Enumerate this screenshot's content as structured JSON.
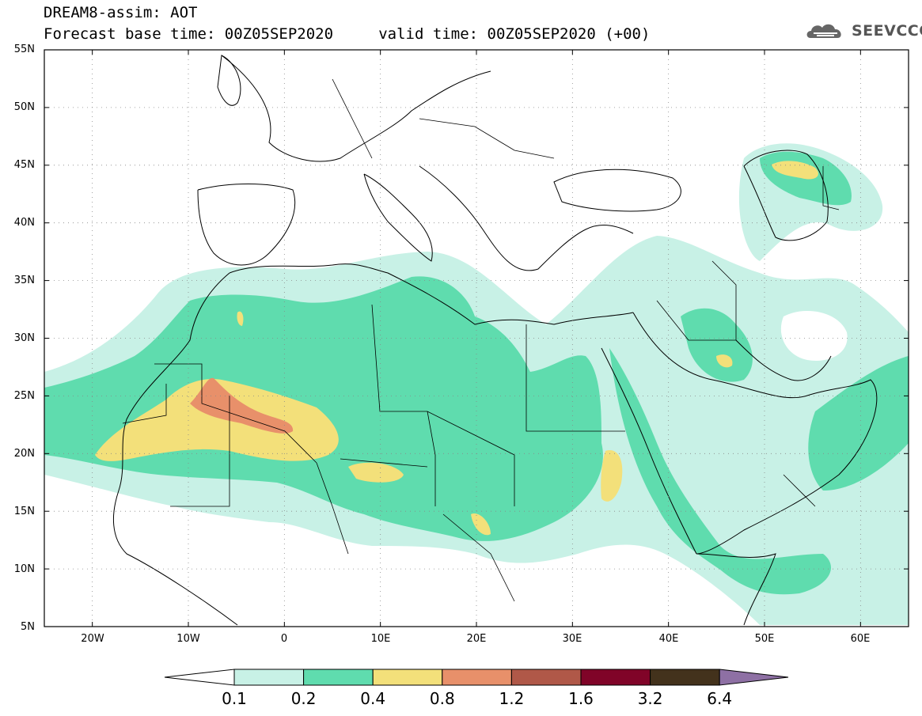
{
  "header": {
    "line1": "DREAM8-assim: AOT",
    "line2": "Forecast base time: 00Z05SEP2020     valid time: 00Z05SEP2020 (+00)"
  },
  "logo": {
    "text": "SEEVCCC",
    "icon": "cloud-icon"
  },
  "map": {
    "lat_range": [
      5,
      55
    ],
    "lon_range": [
      -25,
      65
    ],
    "lat_labels": [
      "55N",
      "50N",
      "45N",
      "40N",
      "35N",
      "30N",
      "25N",
      "20N",
      "15N",
      "10N",
      "5N"
    ],
    "lon_labels": [
      "20W",
      "10W",
      "0",
      "10E",
      "20E",
      "30E",
      "40E",
      "50E",
      "60E"
    ]
  },
  "colorbar": {
    "labels": [
      "0.1",
      "0.2",
      "0.4",
      "0.8",
      "1.2",
      "1.6",
      "3.2",
      "6.4"
    ],
    "colors": [
      "#ffffff",
      "#c8f1e6",
      "#5fdcae",
      "#f3e07a",
      "#e8906a",
      "#b05848",
      "#800428",
      "#43321c",
      "#8e70a4"
    ]
  }
}
